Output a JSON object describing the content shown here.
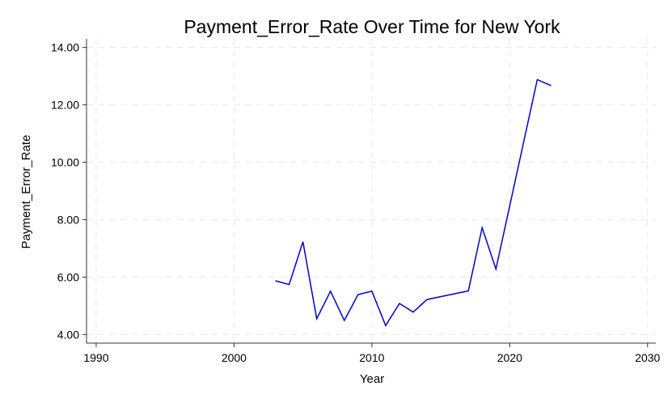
{
  "chart_data": {
    "type": "line",
    "title": "Payment_Error_Rate Over Time for New York",
    "xlabel": "Year",
    "ylabel": "Payment_Error_Rate",
    "xlim": [
      1989.3,
      2030.6
    ],
    "ylim": [
      3.7,
      14.3
    ],
    "x_ticks": [
      1990,
      2000,
      2010,
      2020,
      2030
    ],
    "x_tick_labels": [
      "1990",
      "2000",
      "2010",
      "2020",
      "2030"
    ],
    "y_ticks": [
      4,
      6,
      8,
      10,
      12,
      14
    ],
    "y_tick_labels": [
      "4.00",
      "6.00",
      "8.00",
      "10.00",
      "12.00",
      "14.00"
    ],
    "grid": true,
    "series": [
      {
        "color": "#0000cc",
        "x": [
          2003,
          2004,
          2005,
          2006,
          2007,
          2008,
          2009,
          2010,
          2011,
          2012,
          2013,
          2014,
          2017,
          2018,
          2019,
          2022,
          2023
        ],
        "y": [
          5.87,
          5.74,
          7.23,
          4.55,
          5.51,
          4.49,
          5.39,
          5.51,
          4.31,
          5.08,
          4.78,
          5.22,
          5.52,
          7.72,
          6.28,
          12.88,
          12.67
        ]
      }
    ]
  }
}
